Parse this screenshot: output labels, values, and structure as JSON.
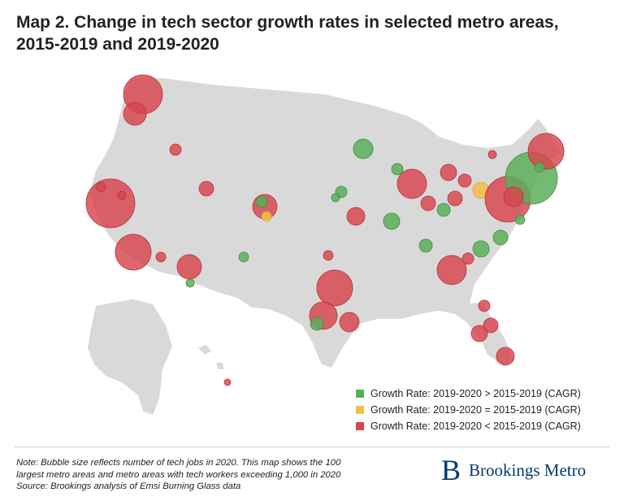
{
  "title_line1": "Map 2. Change in tech sector growth rates in selected metro areas,",
  "title_line2": "2015-2019 and 2019-2020",
  "colors": {
    "green": "#5aae5a",
    "yellow": "#f2c04a",
    "red": "#d9444e",
    "land": "#d9d9d9"
  },
  "legend": [
    {
      "key": "green",
      "label": "Growth Rate: 2019-2020 > 2015-2019 (CAGR)"
    },
    {
      "key": "yellow",
      "label": "Growth Rate: 2019-2020 = 2015-2019 (CAGR)"
    },
    {
      "key": "red",
      "label": "Growth Rate: 2019-2020 < 2015-2019 (CAGR)"
    }
  ],
  "note": {
    "line1": "Note: Bubble size reflects number of tech jobs in 2020. This map shows the 100",
    "line2": "largest metro areas and metro areas with tech workers exceeding 1,000 in 2020",
    "line3": "Source: Brookings analysis of Emsi Burning Glass data"
  },
  "brand": {
    "mark": "B",
    "name": "Brookings Metro"
  }
}
